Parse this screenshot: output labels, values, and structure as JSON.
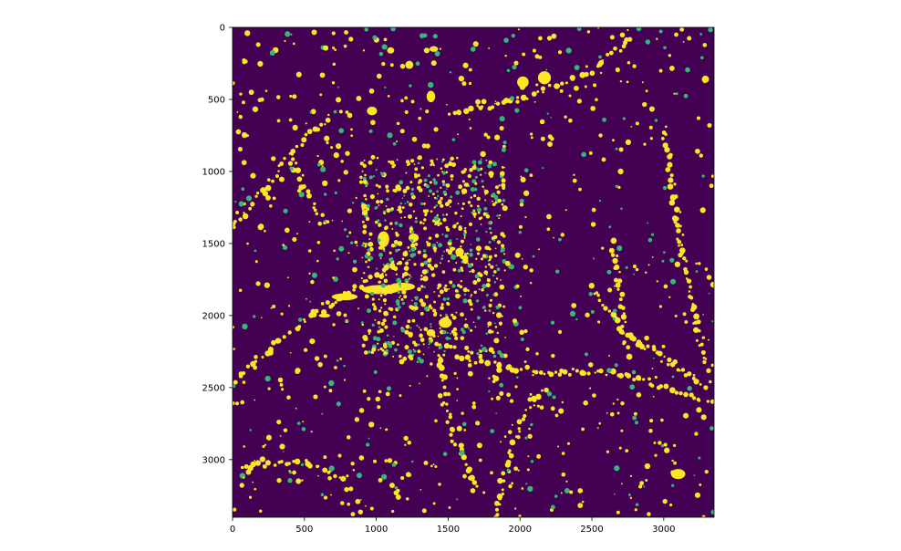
{
  "chart_data": {
    "type": "heatmap",
    "title": "",
    "xlabel": "",
    "ylabel": "",
    "xlim": [
      0,
      3350
    ],
    "ylim": [
      3400,
      0
    ],
    "x_ticks": [
      0,
      500,
      1000,
      1500,
      2000,
      2500,
      3000
    ],
    "y_ticks": [
      0,
      500,
      1000,
      1500,
      2000,
      2500,
      3000
    ],
    "x_tick_labels": [
      "0",
      "500",
      "1000",
      "1500",
      "2000",
      "2500",
      "3000"
    ],
    "y_tick_labels": [
      "0",
      "500",
      "1000",
      "1500",
      "2000",
      "2500",
      "3000"
    ],
    "grid": false,
    "colormap": "viridis",
    "values_range": [
      0,
      1
    ],
    "colors": {
      "background": "#440154",
      "foreground": "#fde725",
      "edge": "#35b779"
    }
  }
}
